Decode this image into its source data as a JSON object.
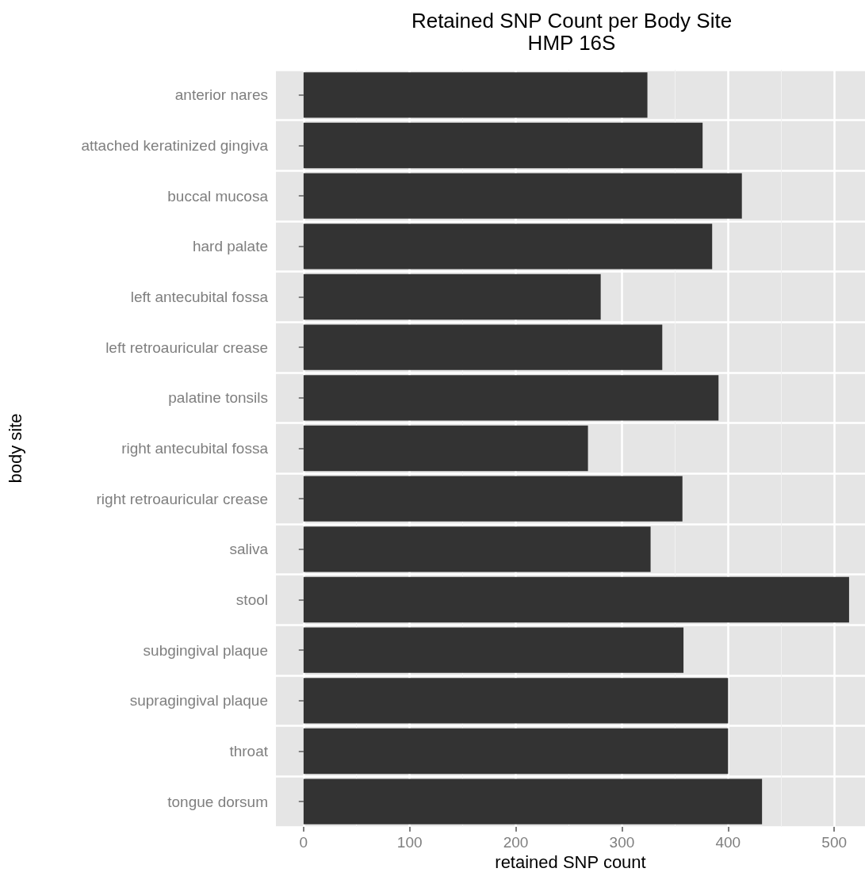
{
  "chart_data": {
    "type": "bar",
    "orientation": "horizontal",
    "title": "Retained SNP Count per Body Site",
    "subtitle": "HMP 16S",
    "xlabel": "retained SNP count",
    "ylabel": "body site",
    "categories": [
      "anterior nares",
      "attached keratinized gingiva",
      "buccal mucosa",
      "hard palate",
      "left antecubital fossa",
      "left retroauricular crease",
      "palatine tonsils",
      "right antecubital fossa",
      "right retroauricular crease",
      "saliva",
      "stool",
      "subgingival plaque",
      "supragingival plaque",
      "throat",
      "tongue dorsum"
    ],
    "values": [
      324,
      376,
      413,
      385,
      280,
      338,
      391,
      268,
      357,
      327,
      514,
      358,
      400,
      400,
      432
    ],
    "color": "#333333",
    "xlim": [
      -26,
      529
    ],
    "xticks": [
      0,
      100,
      200,
      300,
      400,
      500
    ],
    "grid": true
  }
}
